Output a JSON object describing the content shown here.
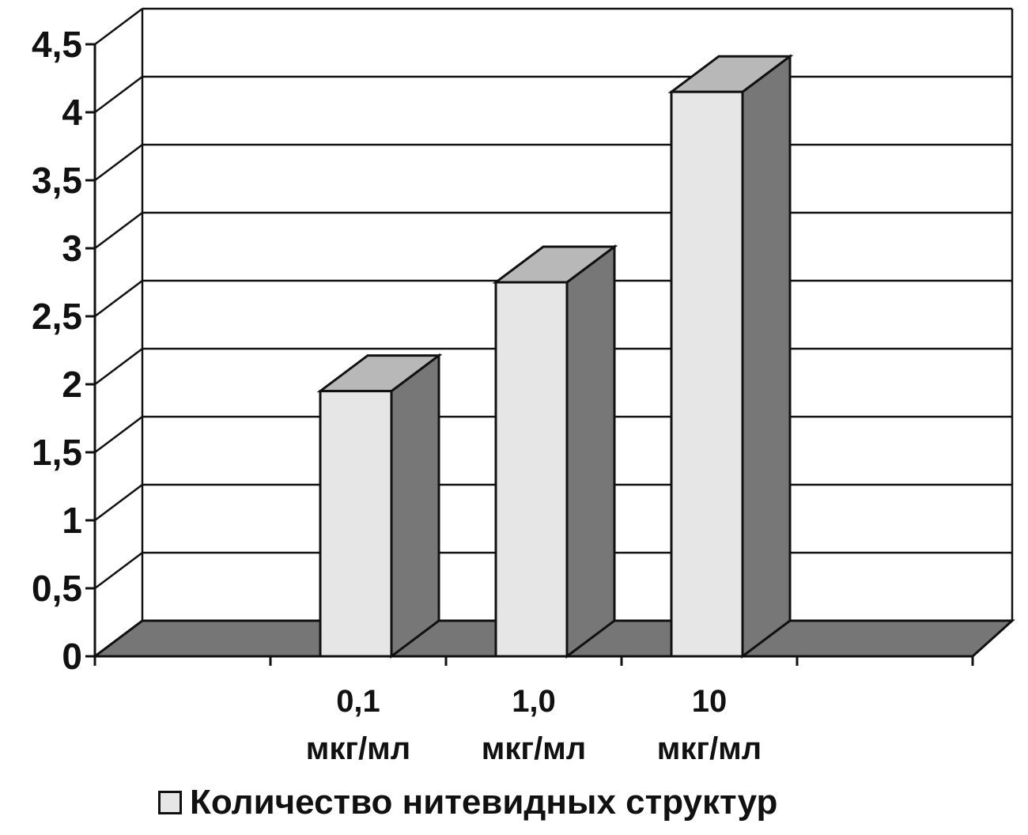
{
  "chart_data": {
    "type": "bar",
    "style": "3d",
    "title": "",
    "xlabel": "",
    "ylabel": "",
    "ylim": [
      0,
      4.5
    ],
    "yticks": [
      "0",
      "0,5",
      "1",
      "1,5",
      "2",
      "2,5",
      "3",
      "3,5",
      "4",
      "4,5"
    ],
    "grid": true,
    "legend_position": "bottom",
    "categories": [
      [
        "",
        ""
      ],
      [
        "0,1",
        "мкг/мл"
      ],
      [
        "1,0",
        "мкг/мл"
      ],
      [
        "10",
        "мкг/мл"
      ],
      [
        "",
        ""
      ]
    ],
    "series": [
      {
        "name": "Количество нитевидных структур",
        "values": [
          0,
          1.95,
          2.75,
          4.15,
          0
        ]
      }
    ],
    "colors": {
      "bar_front": "#e6e6e6",
      "bar_side": "#777777",
      "bar_top": "#b8b8b8",
      "floor": "#767676",
      "outline": "#111111"
    }
  }
}
